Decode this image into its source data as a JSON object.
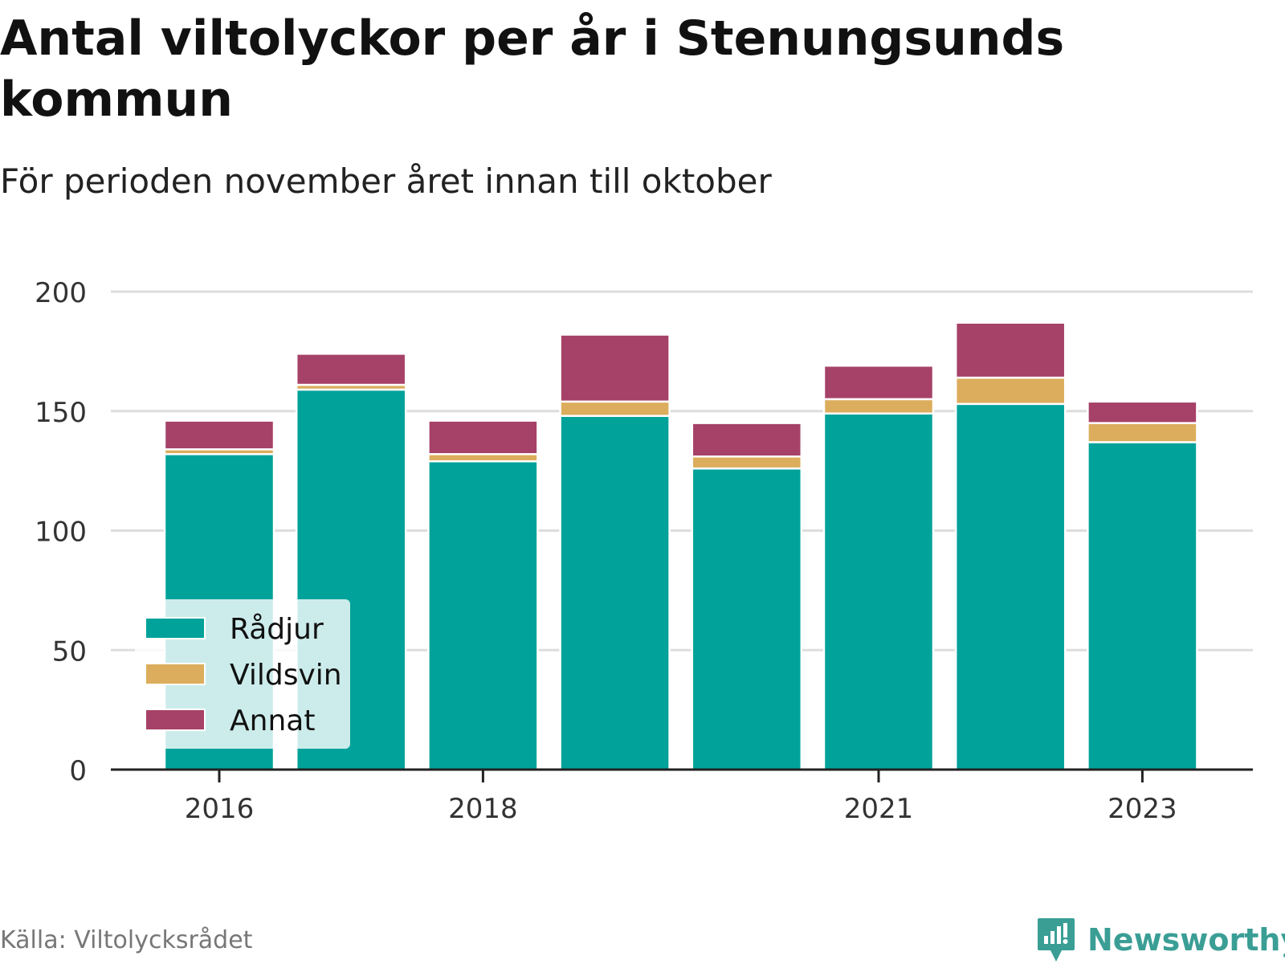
{
  "chart_data": {
    "type": "bar",
    "stacked": true,
    "title": "Antal viltolyckor per år i Stenungsunds kommun",
    "subtitle": "För perioden november året innan till oktober",
    "x": [
      2016,
      2017,
      2018,
      2019,
      2020,
      2021,
      2022,
      2023
    ],
    "x_tick_labels": [
      "2016",
      "2018",
      "2021",
      "2023"
    ],
    "x_tick_values": [
      2016,
      2018,
      2021,
      2023
    ],
    "series": [
      {
        "name": "Rådjur",
        "color": "#00a29a",
        "values": [
          132,
          159,
          129,
          148,
          126,
          149,
          153,
          137
        ]
      },
      {
        "name": "Vildsvin",
        "color": "#dcad5c",
        "values": [
          2,
          2,
          3,
          6,
          5,
          6,
          11,
          8
        ]
      },
      {
        "name": "Annat",
        "color": "#a64167",
        "values": [
          12,
          13,
          14,
          28,
          14,
          14,
          23,
          9
        ]
      }
    ],
    "ylim": [
      0,
      200
    ],
    "y_ticks": [
      0,
      50,
      100,
      150,
      200
    ],
    "grid": true,
    "legend_position": "bottom-left"
  },
  "source": "Källa: Viltolycksrådet",
  "brand": "Newsworthy"
}
